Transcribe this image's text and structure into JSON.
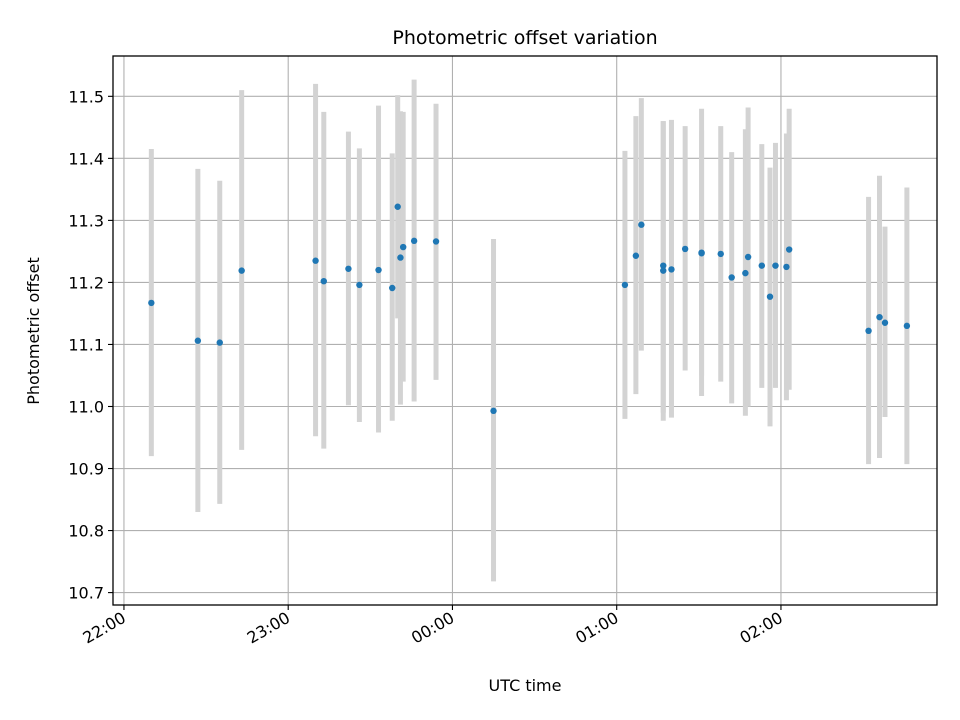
{
  "chart_data": {
    "type": "scatter",
    "title": "Photometric offset variation",
    "xlabel": "UTC time",
    "ylabel": "Photometric offset",
    "x_axis_kind": "time",
    "x_ticks": [
      {
        "time": "22:00",
        "label": "22:00"
      },
      {
        "time": "23:00",
        "label": "23:00"
      },
      {
        "time": "24:00",
        "label": "00:00"
      },
      {
        "time": "25:00",
        "label": "01:00"
      },
      {
        "time": "26:00",
        "label": "02:00"
      }
    ],
    "xlim": [
      "21:56",
      "26:57"
    ],
    "ylim": [
      10.68,
      11.565
    ],
    "y_ticks": [
      10.7,
      10.8,
      10.9,
      11.0,
      11.1,
      11.2,
      11.3,
      11.4,
      11.5
    ],
    "grid": true,
    "colors": {
      "points": "#1f77b4",
      "errorbars": "#d3d3d3",
      "grid": "#b0b0b0"
    },
    "points": [
      {
        "time": "22:10",
        "y": 11.167,
        "low": 10.92,
        "high": 11.415
      },
      {
        "time": "22:27",
        "y": 11.106,
        "low": 10.83,
        "high": 11.383
      },
      {
        "time": "22:35",
        "y": 11.103,
        "low": 10.843,
        "high": 11.364
      },
      {
        "time": "22:43",
        "y": 11.219,
        "low": 10.93,
        "high": 11.51
      },
      {
        "time": "23:10",
        "y": 11.235,
        "low": 10.952,
        "high": 11.52
      },
      {
        "time": "23:13",
        "y": 11.202,
        "low": 10.932,
        "high": 11.475
      },
      {
        "time": "23:22",
        "y": 11.222,
        "low": 11.002,
        "high": 11.443
      },
      {
        "time": "23:26",
        "y": 11.196,
        "low": 10.975,
        "high": 11.416
      },
      {
        "time": "23:33",
        "y": 11.22,
        "low": 10.958,
        "high": 11.485
      },
      {
        "time": "23:38",
        "y": 11.191,
        "low": 10.977,
        "high": 11.408
      },
      {
        "time": "23:40",
        "y": 11.322,
        "low": 11.142,
        "high": 11.502
      },
      {
        "time": "23:41",
        "y": 11.24,
        "low": 11.003,
        "high": 11.476
      },
      {
        "time": "23:42",
        "y": 11.257,
        "low": 11.04,
        "high": 11.475
      },
      {
        "time": "23:46",
        "y": 11.267,
        "low": 11.008,
        "high": 11.527
      },
      {
        "time": "23:54",
        "y": 11.266,
        "low": 11.043,
        "high": 11.488
      },
      {
        "time": "24:15",
        "y": 10.993,
        "low": 10.718,
        "high": 11.27
      },
      {
        "time": "25:03",
        "y": 11.196,
        "low": 10.98,
        "high": 11.412
      },
      {
        "time": "25:07",
        "y": 11.243,
        "low": 11.02,
        "high": 11.468
      },
      {
        "time": "25:09",
        "y": 11.293,
        "low": 11.09,
        "high": 11.497
      },
      {
        "time": "25:17",
        "y": 11.227,
        "low": 10.977,
        "high": 11.46
      },
      {
        "time": "25:17",
        "y": 11.219,
        "low": 10.99,
        "high": 11.46
      },
      {
        "time": "25:20",
        "y": 11.221,
        "low": 10.982,
        "high": 11.462
      },
      {
        "time": "25:25",
        "y": 11.254,
        "low": 11.058,
        "high": 11.452
      },
      {
        "time": "25:31",
        "y": 11.248,
        "low": 11.017,
        "high": 11.48
      },
      {
        "time": "25:31",
        "y": 11.247,
        "low": 11.05,
        "high": 11.445
      },
      {
        "time": "25:38",
        "y": 11.246,
        "low": 11.04,
        "high": 11.452
      },
      {
        "time": "25:42",
        "y": 11.208,
        "low": 11.005,
        "high": 11.41
      },
      {
        "time": "25:47",
        "y": 11.215,
        "low": 10.985,
        "high": 11.447
      },
      {
        "time": "25:48",
        "y": 11.241,
        "low": 11.0,
        "high": 11.482
      },
      {
        "time": "25:53",
        "y": 11.227,
        "low": 11.03,
        "high": 11.423
      },
      {
        "time": "25:56",
        "y": 11.177,
        "low": 10.968,
        "high": 11.385
      },
      {
        "time": "25:58",
        "y": 11.227,
        "low": 11.03,
        "high": 11.425
      },
      {
        "time": "26:02",
        "y": 11.225,
        "low": 11.01,
        "high": 11.44
      },
      {
        "time": "26:03",
        "y": 11.253,
        "low": 11.027,
        "high": 11.48
      },
      {
        "time": "26:32",
        "y": 11.122,
        "low": 10.907,
        "high": 11.338
      },
      {
        "time": "26:36",
        "y": 11.144,
        "low": 10.917,
        "high": 11.372
      },
      {
        "time": "26:38",
        "y": 11.135,
        "low": 10.983,
        "high": 11.29
      },
      {
        "time": "26:46",
        "y": 11.13,
        "low": 10.907,
        "high": 11.353
      }
    ]
  }
}
